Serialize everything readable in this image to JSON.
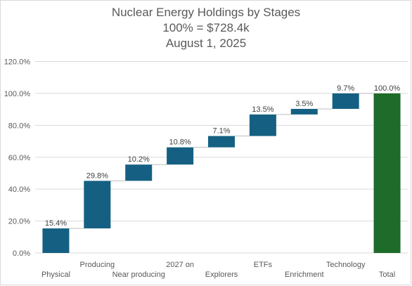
{
  "chart_data": {
    "type": "bar",
    "subtype": "waterfall",
    "title_lines": [
      "Nuclear Energy Holdings by Stages",
      "100% = $728.4k",
      "August 1, 2025"
    ],
    "categories": [
      "Physical",
      "Producing",
      "Near producing",
      "2027 on",
      "Explorers",
      "ETFs",
      "Enrichment",
      "Technology",
      "Total"
    ],
    "values": [
      15.4,
      29.8,
      10.2,
      10.8,
      7.1,
      13.5,
      3.5,
      9.7,
      100.0
    ],
    "data_labels": [
      "15.4%",
      "29.8%",
      "10.2%",
      "10.8%",
      "7.1%",
      "13.5%",
      "3.5%",
      "9.7%",
      "100.0%"
    ],
    "y_ticks": [
      "0.0%",
      "20.0%",
      "40.0%",
      "60.0%",
      "80.0%",
      "100.0%",
      "120.0%"
    ],
    "ylim": [
      0,
      120
    ],
    "grid": true,
    "colors": {
      "increase": "#156082",
      "total": "#1e6b2a",
      "grid": "#d9d9d9",
      "connector": "#bfbfbf"
    }
  }
}
